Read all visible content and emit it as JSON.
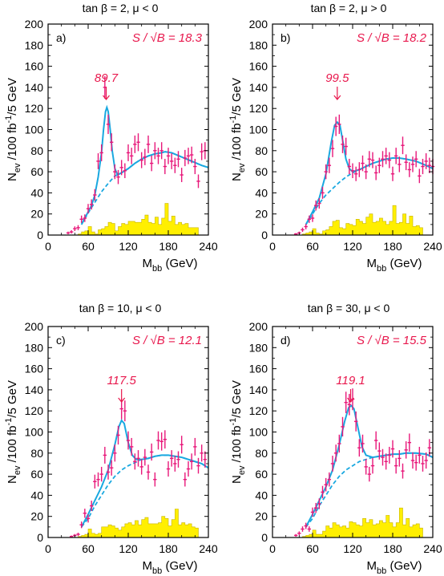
{
  "chart_data": [
    {
      "type": "histogram-fit",
      "title": "tan β = 2, μ < 0",
      "panel_label": "a)",
      "significance": "S / √B = 18.3",
      "peak_label": "89.7",
      "peak_x": 87,
      "xlabel": "M",
      "xlabel_sub": "bb",
      "xlabel_unit": " (GeV)",
      "ylabel_a": "N",
      "ylabel_sub": "ev",
      "ylabel_b": " /100 fb",
      "ylabel_sup": "-1",
      "ylabel_c": "/5 GeV",
      "xlim": [
        0,
        240
      ],
      "ylim": [
        0,
        200
      ],
      "xticks": [
        "0",
        "60",
        "120",
        "180",
        "240"
      ],
      "yticks": [
        "0",
        "20",
        "40",
        "60",
        "80",
        "100",
        "120",
        "140",
        "160",
        "180",
        "200"
      ],
      "data_x": [
        30,
        35,
        40,
        45,
        50,
        55,
        60,
        65,
        70,
        75,
        80,
        85,
        90,
        95,
        100,
        105,
        110,
        115,
        120,
        125,
        130,
        135,
        140,
        145,
        150,
        155,
        160,
        165,
        170,
        175,
        180,
        185,
        190,
        195,
        200,
        205,
        210,
        215,
        220,
        225,
        230,
        235
      ],
      "data_y": [
        2,
        3,
        6,
        7,
        15,
        16,
        25,
        29,
        38,
        70,
        78,
        140,
        105,
        88,
        60,
        55,
        64,
        61,
        78,
        75,
        86,
        88,
        71,
        74,
        86,
        68,
        80,
        75,
        80,
        65,
        75,
        70,
        66,
        72,
        57,
        73,
        75,
        76,
        65,
        51,
        79,
        80
      ],
      "fit": [
        [
          50,
          10
        ],
        [
          60,
          22
        ],
        [
          65,
          28
        ],
        [
          70,
          38
        ],
        [
          75,
          55
        ],
        [
          80,
          78
        ],
        [
          83,
          100
        ],
        [
          86,
          117
        ],
        [
          88,
          121
        ],
        [
          90,
          117
        ],
        [
          93,
          100
        ],
        [
          96,
          80
        ],
        [
          100,
          63
        ],
        [
          104,
          57
        ],
        [
          110,
          59
        ],
        [
          120,
          63
        ],
        [
          130,
          68
        ],
        [
          140,
          72
        ],
        [
          150,
          75
        ],
        [
          160,
          77
        ],
        [
          170,
          78
        ],
        [
          175,
          79
        ],
        [
          185,
          78
        ],
        [
          200,
          74
        ],
        [
          215,
          70
        ],
        [
          230,
          66
        ],
        [
          240,
          64
        ]
      ],
      "background": [
        [
          50,
          10
        ],
        [
          60,
          21
        ],
        [
          70,
          31
        ],
        [
          80,
          41
        ],
        [
          90,
          49
        ],
        [
          100,
          56
        ],
        [
          110,
          59
        ],
        [
          120,
          63
        ],
        [
          130,
          68
        ],
        [
          140,
          72
        ],
        [
          150,
          75
        ],
        [
          160,
          77
        ],
        [
          170,
          78
        ],
        [
          175,
          79
        ],
        [
          185,
          78
        ],
        [
          200,
          74
        ],
        [
          215,
          70
        ],
        [
          230,
          66
        ],
        [
          240,
          64
        ]
      ],
      "bg_hist": [
        0,
        0,
        0,
        0,
        0,
        0,
        0,
        0,
        0,
        1,
        3,
        4,
        8,
        3,
        1,
        5,
        6,
        8,
        12,
        11,
        4,
        8,
        11,
        10,
        13,
        13,
        12,
        12,
        15,
        19,
        12,
        11,
        17,
        10,
        16,
        30,
        13,
        18,
        10,
        12,
        10,
        11,
        7,
        7,
        7,
        0,
        0,
        0
      ]
    },
    {
      "type": "histogram-fit",
      "title": "tan β = 2, μ > 0",
      "panel_label": "b)",
      "significance": "S / √B = 18.2",
      "peak_label": "99.5",
      "peak_x": 97,
      "xlabel": "M",
      "xlabel_sub": "bb",
      "xlabel_unit": " (GeV)",
      "ylabel_a": "N",
      "ylabel_sub": "ev",
      "ylabel_b": " /100 fb",
      "ylabel_sup": "-1",
      "ylabel_c": "/5 GeV",
      "xlim": [
        0,
        240
      ],
      "ylim": [
        0,
        200
      ],
      "xticks": [
        "0",
        "60",
        "120",
        "180",
        "240"
      ],
      "yticks": [
        "0",
        "20",
        "40",
        "60",
        "80",
        "100",
        "120",
        "140",
        "160",
        "180",
        "200"
      ],
      "data_x": [
        35,
        40,
        45,
        50,
        55,
        60,
        65,
        70,
        75,
        80,
        85,
        90,
        95,
        100,
        105,
        110,
        115,
        120,
        125,
        130,
        135,
        140,
        145,
        150,
        155,
        160,
        165,
        170,
        175,
        180,
        185,
        190,
        195,
        200,
        205,
        210,
        215,
        220,
        225,
        230,
        235,
        240
      ],
      "data_y": [
        1,
        2,
        5,
        8,
        15,
        16,
        28,
        30,
        40,
        60,
        66,
        82,
        103,
        105,
        86,
        84,
        65,
        61,
        58,
        62,
        68,
        60,
        72,
        71,
        59,
        66,
        72,
        75,
        71,
        58,
        75,
        67,
        85,
        69,
        62,
        67,
        72,
        56,
        65,
        70,
        66,
        65
      ],
      "fit": [
        [
          50,
          10
        ],
        [
          60,
          22
        ],
        [
          70,
          35
        ],
        [
          80,
          58
        ],
        [
          88,
          88
        ],
        [
          93,
          104
        ],
        [
          97,
          107
        ],
        [
          101,
          104
        ],
        [
          105,
          90
        ],
        [
          110,
          72
        ],
        [
          115,
          63
        ],
        [
          120,
          60
        ],
        [
          130,
          62
        ],
        [
          140,
          65
        ],
        [
          150,
          68
        ],
        [
          160,
          70
        ],
        [
          170,
          72
        ],
        [
          180,
          73
        ],
        [
          190,
          73
        ],
        [
          200,
          72
        ],
        [
          215,
          70
        ],
        [
          230,
          66
        ],
        [
          240,
          63
        ]
      ],
      "background": [
        [
          50,
          10
        ],
        [
          60,
          20
        ],
        [
          70,
          30
        ],
        [
          80,
          38
        ],
        [
          90,
          44
        ],
        [
          100,
          50
        ],
        [
          110,
          55
        ],
        [
          120,
          59
        ],
        [
          130,
          62
        ],
        [
          140,
          65
        ],
        [
          150,
          68
        ],
        [
          160,
          70
        ],
        [
          170,
          72
        ],
        [
          180,
          73
        ],
        [
          190,
          73
        ],
        [
          200,
          72
        ],
        [
          215,
          70
        ],
        [
          230,
          66
        ],
        [
          240,
          63
        ]
      ],
      "bg_hist": [
        0,
        0,
        0,
        0,
        0,
        0,
        0,
        0,
        0,
        1,
        2,
        3,
        6,
        2,
        1,
        4,
        5,
        8,
        13,
        14,
        7,
        6,
        11,
        10,
        9,
        15,
        13,
        11,
        17,
        20,
        12,
        13,
        16,
        13,
        10,
        13,
        28,
        11,
        12,
        20,
        11,
        18,
        8,
        9,
        7,
        0,
        0,
        0
      ]
    },
    {
      "type": "histogram-fit",
      "title": "tan β = 10, μ < 0",
      "panel_label": "c)",
      "significance": "S / √B = 12.1",
      "peak_label": "117.5",
      "peak_x": 110,
      "xlabel": "M",
      "xlabel_sub": "bb",
      "xlabel_unit": " (GeV)",
      "ylabel_a": "N",
      "ylabel_sub": "ev",
      "ylabel_b": " /100 fb",
      "ylabel_sup": "-1",
      "ylabel_c": "/5 GeV",
      "xlim": [
        0,
        240
      ],
      "ylim": [
        0,
        200
      ],
      "xticks": [
        "0",
        "60",
        "120",
        "180",
        "240"
      ],
      "yticks": [
        "0",
        "20",
        "40",
        "60",
        "80",
        "100",
        "120",
        "140",
        "160",
        "180",
        "200"
      ],
      "data_x": [
        35,
        40,
        45,
        50,
        55,
        60,
        65,
        70,
        75,
        80,
        85,
        90,
        95,
        100,
        105,
        110,
        115,
        120,
        125,
        130,
        135,
        140,
        145,
        150,
        155,
        160,
        165,
        170,
        175,
        180,
        185,
        190,
        195,
        200,
        205,
        210,
        215,
        220,
        225,
        230,
        235
      ],
      "data_y": [
        1,
        2,
        3,
        12,
        23,
        18,
        30,
        53,
        55,
        60,
        78,
        62,
        66,
        80,
        97,
        122,
        120,
        92,
        86,
        72,
        75,
        67,
        76,
        62,
        81,
        55,
        92,
        91,
        93,
        65,
        75,
        70,
        74,
        88,
        55,
        65,
        72,
        86,
        68,
        80,
        74
      ],
      "fit": [
        [
          50,
          10
        ],
        [
          60,
          22
        ],
        [
          70,
          35
        ],
        [
          80,
          48
        ],
        [
          90,
          64
        ],
        [
          100,
          88
        ],
        [
          106,
          105
        ],
        [
          110,
          111
        ],
        [
          114,
          108
        ],
        [
          120,
          90
        ],
        [
          126,
          78
        ],
        [
          132,
          74
        ],
        [
          140,
          74
        ],
        [
          150,
          75
        ],
        [
          160,
          77
        ],
        [
          170,
          78
        ],
        [
          180,
          78
        ],
        [
          190,
          77
        ],
        [
          200,
          76
        ],
        [
          215,
          73
        ],
        [
          230,
          70
        ],
        [
          240,
          66
        ]
      ],
      "background": [
        [
          50,
          10
        ],
        [
          60,
          18
        ],
        [
          70,
          30
        ],
        [
          80,
          40
        ],
        [
          90,
          50
        ],
        [
          100,
          58
        ],
        [
          110,
          64
        ],
        [
          120,
          68
        ],
        [
          130,
          71
        ],
        [
          140,
          74
        ],
        [
          150,
          75
        ],
        [
          160,
          77
        ],
        [
          170,
          78
        ],
        [
          180,
          78
        ],
        [
          190,
          77
        ],
        [
          200,
          76
        ],
        [
          215,
          73
        ],
        [
          230,
          70
        ],
        [
          240,
          66
        ]
      ],
      "bg_hist": [
        0,
        0,
        0,
        0,
        0,
        0,
        0,
        0,
        0,
        1,
        2,
        3,
        8,
        4,
        3,
        4,
        10,
        10,
        12,
        11,
        9,
        7,
        10,
        13,
        14,
        12,
        16,
        12,
        17,
        19,
        13,
        13,
        13,
        14,
        20,
        18,
        11,
        17,
        27,
        12,
        14,
        12,
        13,
        10,
        9,
        0,
        0,
        0
      ]
    },
    {
      "type": "histogram-fit",
      "title": "tan β = 30, μ < 0",
      "panel_label": "d)",
      "significance": "S / √B = 15.5",
      "peak_label": "119.1",
      "peak_x": 117,
      "xlabel": "M",
      "xlabel_sub": "bb",
      "xlabel_unit": " (GeV)",
      "ylabel_a": "N",
      "ylabel_sub": "ev",
      "ylabel_b": " /100 fb",
      "ylabel_sup": "-1",
      "ylabel_c": "/5 GeV",
      "xlim": [
        0,
        240
      ],
      "ylim": [
        0,
        200
      ],
      "xticks": [
        "0",
        "60",
        "120",
        "180",
        "240"
      ],
      "yticks": [
        "0",
        "20",
        "40",
        "60",
        "80",
        "100",
        "120",
        "140",
        "160",
        "180",
        "200"
      ],
      "data_x": [
        35,
        40,
        45,
        50,
        55,
        60,
        65,
        70,
        75,
        80,
        85,
        90,
        95,
        100,
        105,
        110,
        115,
        120,
        125,
        130,
        135,
        140,
        145,
        150,
        155,
        160,
        165,
        170,
        175,
        180,
        185,
        190,
        195,
        200,
        205,
        210,
        215,
        220,
        225,
        230,
        235
      ],
      "data_y": [
        2,
        4,
        8,
        11,
        8,
        24,
        28,
        32,
        43,
        50,
        55,
        70,
        80,
        89,
        105,
        128,
        126,
        131,
        110,
        85,
        89,
        67,
        60,
        68,
        92,
        82,
        76,
        72,
        78,
        84,
        68,
        75,
        63,
        83,
        90,
        73,
        71,
        78,
        70,
        73,
        85
      ],
      "fit": [
        [
          50,
          10
        ],
        [
          60,
          22
        ],
        [
          70,
          35
        ],
        [
          80,
          48
        ],
        [
          90,
          64
        ],
        [
          100,
          88
        ],
        [
          108,
          110
        ],
        [
          114,
          123
        ],
        [
          118,
          125
        ],
        [
          122,
          122
        ],
        [
          128,
          104
        ],
        [
          134,
          86
        ],
        [
          140,
          78
        ],
        [
          150,
          76
        ],
        [
          160,
          77
        ],
        [
          170,
          78
        ],
        [
          180,
          79
        ],
        [
          190,
          79
        ],
        [
          200,
          80
        ],
        [
          215,
          80
        ],
        [
          230,
          79
        ],
        [
          240,
          76
        ]
      ],
      "background": [
        [
          50,
          10
        ],
        [
          60,
          18
        ],
        [
          70,
          30
        ],
        [
          80,
          40
        ],
        [
          90,
          50
        ],
        [
          100,
          58
        ],
        [
          110,
          64
        ],
        [
          120,
          68
        ],
        [
          130,
          72
        ],
        [
          140,
          74
        ],
        [
          150,
          76
        ],
        [
          160,
          77
        ],
        [
          170,
          78
        ],
        [
          180,
          79
        ],
        [
          190,
          79
        ],
        [
          200,
          80
        ],
        [
          215,
          80
        ],
        [
          230,
          79
        ],
        [
          240,
          76
        ]
      ],
      "bg_hist": [
        0,
        0,
        0,
        0,
        0,
        0,
        0,
        0,
        0,
        1,
        2,
        3,
        7,
        3,
        3,
        6,
        11,
        9,
        14,
        12,
        10,
        11,
        9,
        15,
        14,
        12,
        11,
        18,
        14,
        17,
        12,
        13,
        16,
        14,
        21,
        14,
        10,
        14,
        28,
        12,
        18,
        10,
        12,
        13,
        9,
        0,
        0,
        0
      ]
    }
  ],
  "colors": {
    "data": "#e8187a",
    "fit": "#19a8e0",
    "background_fill": "#ffef00",
    "background_edge": "#c8b400",
    "annotation": "#e8184d"
  }
}
